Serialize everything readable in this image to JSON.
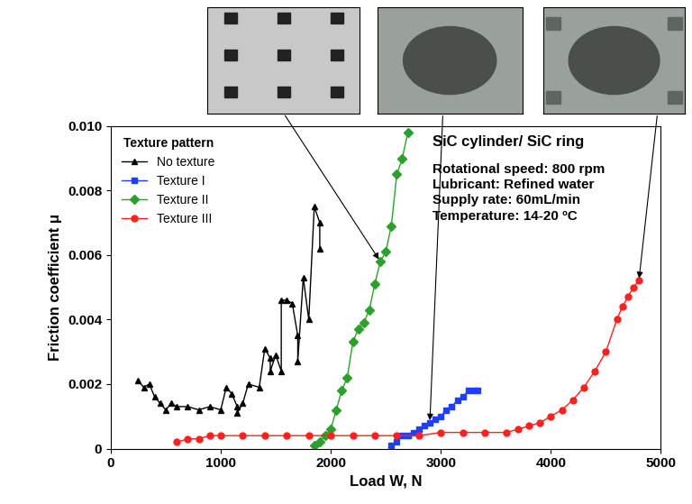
{
  "chart_data": {
    "type": "line",
    "x_label": "Load W, N",
    "y_label": "Friction coefficient μ",
    "legend_title": "Texture pattern",
    "legend": "upper left",
    "annotations": [
      "SiC cylinder/ SiC ring",
      "Rotational speed: 800 rpm",
      "Lubricant: Refined water",
      "Supply rate: 60mL/min",
      "Temperature: 14-20 ºC"
    ],
    "xlim": [
      0,
      5000
    ],
    "xticks": [
      0,
      1000,
      2000,
      3000,
      4000,
      5000
    ],
    "ylim": [
      0,
      0.01
    ],
    "yticks": [
      0,
      0.002,
      0.004,
      0.006,
      0.008,
      {
        "value": 0.01,
        "label": "0.010"
      }
    ],
    "series": [
      {
        "name": "No texture",
        "color": "#000000",
        "marker": "triangle",
        "line_style": "solid",
        "x": [
          250,
          300,
          350,
          400,
          450,
          500,
          550,
          600,
          700,
          800,
          900,
          1000,
          1050,
          1100,
          1150,
          1150,
          1200,
          1250,
          1350,
          1400,
          1450,
          1450,
          1500,
          1550,
          1550,
          1600,
          1650,
          1700,
          1700,
          1750,
          1800,
          1850,
          1900,
          1900
        ],
        "values": [
          0.0021,
          0.0019,
          0.002,
          0.0016,
          0.0014,
          0.0012,
          0.0014,
          0.0013,
          0.0013,
          0.0012,
          0.0013,
          0.0012,
          0.0019,
          0.0017,
          0.0013,
          0.0011,
          0.0014,
          0.002,
          0.0019,
          0.0031,
          0.0028,
          0.0024,
          0.0029,
          0.0024,
          0.0046,
          0.0046,
          0.0045,
          0.0035,
          0.0027,
          0.0053,
          0.004,
          0.0075,
          0.007,
          0.0062
        ]
      },
      {
        "name": "Texture I",
        "color": "#1f3fff",
        "marker": "square",
        "line_style": "solid",
        "x": [
          2550,
          2600,
          2650,
          2700,
          2750,
          2800,
          2850,
          2900,
          2950,
          3000,
          3050,
          3100,
          3150,
          3200,
          3250,
          3300,
          3330
        ],
        "values": [
          0.0001,
          0.0002,
          0.0004,
          0.0004,
          0.0005,
          0.0006,
          0.0007,
          0.0008,
          0.0009,
          0.001,
          0.0012,
          0.0013,
          0.0015,
          0.0016,
          0.0018,
          0.0018,
          0.0018
        ]
      },
      {
        "name": "Texture II",
        "color": "#2ca02c",
        "marker": "diamond",
        "line_style": "solid",
        "x": [
          1850,
          1900,
          1950,
          2000,
          2050,
          2100,
          2150,
          2200,
          2250,
          2300,
          2350,
          2400,
          2450,
          2500,
          2550,
          2600,
          2650,
          2700
        ],
        "values": [
          0.0001,
          0.0002,
          0.0004,
          0.0006,
          0.0012,
          0.0018,
          0.0022,
          0.0033,
          0.0037,
          0.0039,
          0.0043,
          0.0051,
          0.0058,
          0.0061,
          0.0069,
          0.0085,
          0.009,
          0.0098
        ]
      },
      {
        "name": "Texture III",
        "color": "#ff2020",
        "marker": "circle",
        "line_style": "solid",
        "x": [
          600,
          700,
          800,
          900,
          1000,
          1200,
          1400,
          1600,
          1800,
          2000,
          2200,
          2400,
          2600,
          2800,
          3000,
          3200,
          3400,
          3600,
          3700,
          3800,
          3900,
          4000,
          4100,
          4200,
          4300,
          4400,
          4500,
          4600,
          4650,
          4700,
          4750,
          4800
        ],
        "values": [
          0.0002,
          0.0003,
          0.0003,
          0.0004,
          0.0004,
          0.0004,
          0.0004,
          0.0004,
          0.0004,
          0.0004,
          0.0004,
          0.0004,
          0.0004,
          0.0004,
          0.0005,
          0.0005,
          0.0005,
          0.0005,
          0.0006,
          0.0007,
          0.0008,
          0.001,
          0.0012,
          0.0015,
          0.0019,
          0.0024,
          0.003,
          0.004,
          0.0044,
          0.0047,
          0.005,
          0.0052
        ]
      }
    ]
  }
}
